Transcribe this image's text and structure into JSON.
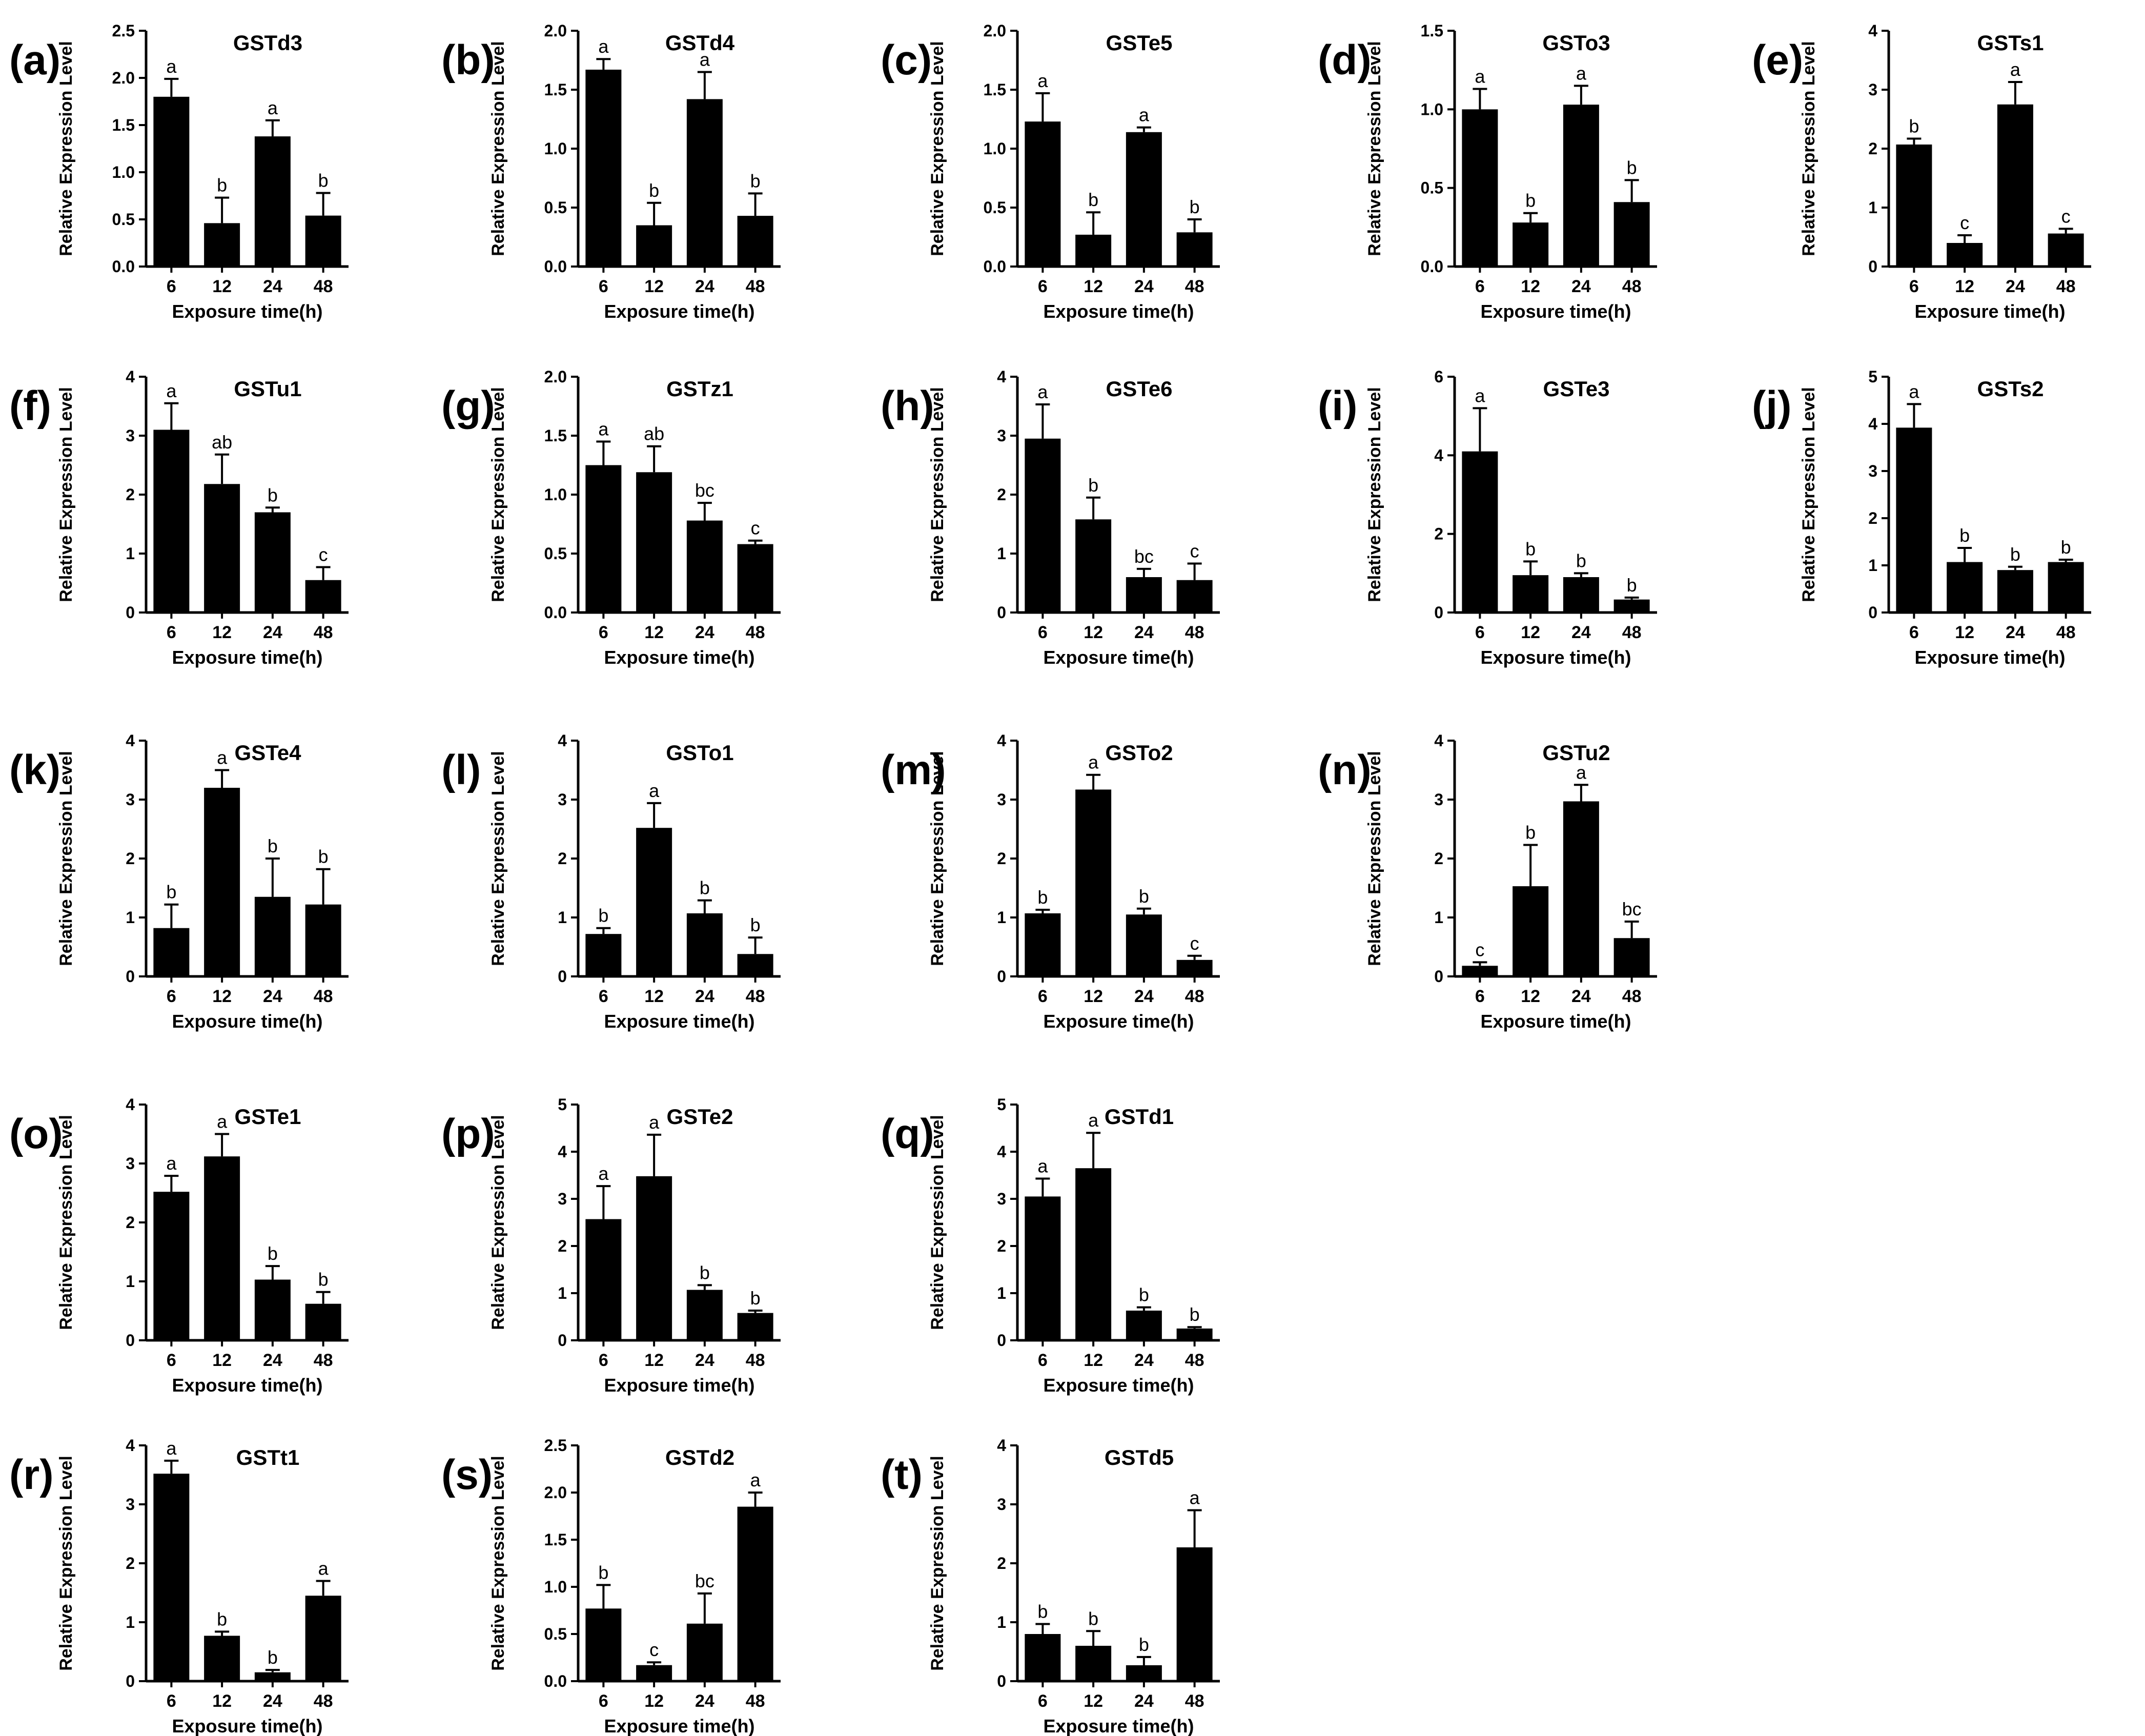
{
  "x_categories": [
    "6",
    "12",
    "24",
    "48"
  ],
  "x_axis_label": "Exposure time(h)",
  "y_axis_label": "Relative Expression Level",
  "chart_data": [
    {
      "panel": "(a)",
      "type": "bar",
      "title": "GSTd3",
      "ylim": [
        0,
        2.5
      ],
      "yticks": [
        "0.0",
        "0.5",
        "1.0",
        "1.5",
        "2.0",
        "2.5"
      ],
      "categories": [
        "6",
        "12",
        "24",
        "48"
      ],
      "values": [
        1.8,
        0.46,
        1.38,
        0.54
      ],
      "errors": [
        0.19,
        0.27,
        0.17,
        0.24
      ],
      "letters": [
        "a",
        "b",
        "a",
        "b"
      ],
      "xlabel": "Exposure time(h)",
      "ylabel": "Relative Expression Level"
    },
    {
      "panel": "(b)",
      "type": "bar",
      "title": "GSTd4",
      "ylim": [
        0,
        2.0
      ],
      "yticks": [
        "0.0",
        "0.5",
        "1.0",
        "1.5",
        "2.0"
      ],
      "categories": [
        "6",
        "12",
        "24",
        "48"
      ],
      "values": [
        1.67,
        0.35,
        1.42,
        0.43
      ],
      "errors": [
        0.09,
        0.19,
        0.23,
        0.19
      ],
      "letters": [
        "a",
        "b",
        "a",
        "b"
      ],
      "xlabel": "Exposure time(h)",
      "ylabel": "Relative Expression Level"
    },
    {
      "panel": "(c)",
      "type": "bar",
      "title": "GSTe5",
      "ylim": [
        0,
        2.0
      ],
      "yticks": [
        "0.0",
        "0.5",
        "1.0",
        "1.5",
        "2.0"
      ],
      "categories": [
        "6",
        "12",
        "24",
        "48"
      ],
      "values": [
        1.23,
        0.27,
        1.14,
        0.29
      ],
      "errors": [
        0.24,
        0.19,
        0.04,
        0.11
      ],
      "letters": [
        "a",
        "b",
        "a",
        "b"
      ],
      "xlabel": "Exposure time(h)",
      "ylabel": "Relative Expression Level"
    },
    {
      "panel": "(d)",
      "type": "bar",
      "title": "GSTo3",
      "ylim": [
        0,
        1.5
      ],
      "yticks": [
        "0.0",
        "0.5",
        "1.0",
        "1.5"
      ],
      "categories": [
        "6",
        "12",
        "24",
        "48"
      ],
      "values": [
        1.0,
        0.28,
        1.03,
        0.41
      ],
      "errors": [
        0.13,
        0.06,
        0.12,
        0.14
      ],
      "letters": [
        "a",
        "b",
        "a",
        "b"
      ],
      "xlabel": "Exposure time(h)",
      "ylabel": "Relative Expression Level"
    },
    {
      "panel": "(e)",
      "type": "bar",
      "title": "GSTs1",
      "ylim": [
        0,
        4
      ],
      "yticks": [
        "0",
        "1",
        "2",
        "3",
        "4"
      ],
      "categories": [
        "6",
        "12",
        "24",
        "48"
      ],
      "values": [
        2.07,
        0.4,
        2.75,
        0.56
      ],
      "errors": [
        0.1,
        0.13,
        0.38,
        0.08
      ],
      "letters": [
        "b",
        "c",
        "a",
        "c"
      ],
      "xlabel": "Exposure time(h)",
      "ylabel": "Relative Expression Level"
    },
    {
      "panel": "(f)",
      "type": "bar",
      "title": "GSTu1",
      "ylim": [
        0,
        4
      ],
      "yticks": [
        "0",
        "1",
        "2",
        "3",
        "4"
      ],
      "categories": [
        "6",
        "12",
        "24",
        "48"
      ],
      "values": [
        3.1,
        2.18,
        1.7,
        0.55
      ],
      "errors": [
        0.45,
        0.5,
        0.08,
        0.22
      ],
      "letters": [
        "a",
        "ab",
        "b",
        "c"
      ],
      "xlabel": "Exposure time(h)",
      "ylabel": "Relative Expression Level"
    },
    {
      "panel": "(g)",
      "type": "bar",
      "title": "GSTz1",
      "ylim": [
        0,
        2.0
      ],
      "yticks": [
        "0.0",
        "0.5",
        "1.0",
        "1.5",
        "2.0"
      ],
      "categories": [
        "6",
        "12",
        "24",
        "48"
      ],
      "values": [
        1.25,
        1.19,
        0.78,
        0.58
      ],
      "errors": [
        0.2,
        0.22,
        0.15,
        0.03
      ],
      "letters": [
        "a",
        "ab",
        "bc",
        "c"
      ],
      "xlabel": "Exposure time(h)",
      "ylabel": "Relative Expression Level"
    },
    {
      "panel": "(h)",
      "type": "bar",
      "title": "GSTe6",
      "ylim": [
        0,
        4
      ],
      "yticks": [
        "0",
        "1",
        "2",
        "3",
        "4"
      ],
      "categories": [
        "6",
        "12",
        "24",
        "48"
      ],
      "values": [
        2.95,
        1.58,
        0.6,
        0.55
      ],
      "errors": [
        0.58,
        0.37,
        0.14,
        0.28
      ],
      "letters": [
        "a",
        "b",
        "bc",
        "c"
      ],
      "xlabel": "Exposure time(h)",
      "ylabel": "Relative Expression Level"
    },
    {
      "panel": "(i)",
      "type": "bar",
      "title": "GSTe3",
      "ylim": [
        0,
        6
      ],
      "yticks": [
        "0",
        "2",
        "4",
        "6"
      ],
      "categories": [
        "6",
        "12",
        "24",
        "48"
      ],
      "values": [
        4.1,
        0.95,
        0.9,
        0.33
      ],
      "errors": [
        1.1,
        0.35,
        0.1,
        0.05
      ],
      "letters": [
        "a",
        "b",
        "b",
        "b"
      ],
      "xlabel": "Exposure time(h)",
      "ylabel": "Relative Expression Level"
    },
    {
      "panel": "(j)",
      "type": "bar",
      "title": "GSTs2",
      "ylim": [
        0,
        5
      ],
      "yticks": [
        "0",
        "1",
        "2",
        "3",
        "4",
        "5"
      ],
      "categories": [
        "6",
        "12",
        "24",
        "48"
      ],
      "values": [
        3.92,
        1.07,
        0.9,
        1.07
      ],
      "errors": [
        0.5,
        0.3,
        0.07,
        0.05
      ],
      "letters": [
        "a",
        "b",
        "b",
        "b"
      ],
      "xlabel": "Exposure time(h)",
      "ylabel": "Relative Expression Level"
    },
    {
      "panel": "(k)",
      "type": "bar",
      "title": "GSTe4",
      "ylim": [
        0,
        4
      ],
      "yticks": [
        "0",
        "1",
        "2",
        "3",
        "4"
      ],
      "categories": [
        "6",
        "12",
        "24",
        "48"
      ],
      "values": [
        0.82,
        3.2,
        1.35,
        1.22
      ],
      "errors": [
        0.4,
        0.3,
        0.65,
        0.6
      ],
      "letters": [
        "b",
        "a",
        "b",
        "b"
      ],
      "xlabel": "Exposure time(h)",
      "ylabel": "Relative Expression Level"
    },
    {
      "panel": "(l)",
      "type": "bar",
      "title": "GSTo1",
      "ylim": [
        0,
        4
      ],
      "yticks": [
        "0",
        "1",
        "2",
        "3",
        "4"
      ],
      "categories": [
        "6",
        "12",
        "24",
        "48"
      ],
      "values": [
        0.72,
        2.52,
        1.07,
        0.38
      ],
      "errors": [
        0.1,
        0.42,
        0.22,
        0.28
      ],
      "letters": [
        "b",
        "a",
        "b",
        "b"
      ],
      "xlabel": "Exposure time(h)",
      "ylabel": "Relative Expression Level"
    },
    {
      "panel": "(m)",
      "type": "bar",
      "title": "GSTo2",
      "ylim": [
        0,
        4
      ],
      "yticks": [
        "0",
        "1",
        "2",
        "3",
        "4"
      ],
      "categories": [
        "6",
        "12",
        "24",
        "48"
      ],
      "values": [
        1.07,
        3.17,
        1.05,
        0.28
      ],
      "errors": [
        0.06,
        0.25,
        0.1,
        0.07
      ],
      "letters": [
        "b",
        "a",
        "b",
        "c"
      ],
      "xlabel": "Exposure time(h)",
      "ylabel": "Relative Expression Level"
    },
    {
      "panel": "(n)",
      "type": "bar",
      "title": "GSTu2",
      "ylim": [
        0,
        4
      ],
      "yticks": [
        "0",
        "1",
        "2",
        "3",
        "4"
      ],
      "categories": [
        "6",
        "12",
        "24",
        "48"
      ],
      "values": [
        0.18,
        1.53,
        2.97,
        0.65
      ],
      "errors": [
        0.06,
        0.7,
        0.28,
        0.28
      ],
      "letters": [
        "c",
        "b",
        "a",
        "bc"
      ],
      "xlabel": "Exposure time(h)",
      "ylabel": "Relative Expression Level"
    },
    {
      "panel": "(o)",
      "type": "bar",
      "title": "GSTe1",
      "ylim": [
        0,
        4
      ],
      "yticks": [
        "0",
        "1",
        "2",
        "3",
        "4"
      ],
      "categories": [
        "6",
        "12",
        "24",
        "48"
      ],
      "values": [
        2.52,
        3.12,
        1.03,
        0.62
      ],
      "errors": [
        0.27,
        0.38,
        0.23,
        0.2
      ],
      "letters": [
        "a",
        "a",
        "b",
        "b"
      ],
      "xlabel": "Exposure time(h)",
      "ylabel": "Relative Expression Level"
    },
    {
      "panel": "(p)",
      "type": "bar",
      "title": "GSTe2",
      "ylim": [
        0,
        5
      ],
      "yticks": [
        "0",
        "1",
        "2",
        "3",
        "4",
        "5"
      ],
      "categories": [
        "6",
        "12",
        "24",
        "48"
      ],
      "values": [
        2.57,
        3.48,
        1.07,
        0.58
      ],
      "errors": [
        0.7,
        0.88,
        0.1,
        0.05
      ],
      "letters": [
        "a",
        "a",
        "b",
        "b"
      ],
      "xlabel": "Exposure time(h)",
      "ylabel": "Relative Expression Level"
    },
    {
      "panel": "(q)",
      "type": "bar",
      "title": "GSTd1",
      "ylim": [
        0,
        5
      ],
      "yticks": [
        "0",
        "1",
        "2",
        "3",
        "4",
        "5"
      ],
      "categories": [
        "6",
        "12",
        "24",
        "48"
      ],
      "values": [
        3.05,
        3.65,
        0.63,
        0.25
      ],
      "errors": [
        0.38,
        0.75,
        0.07,
        0.03
      ],
      "letters": [
        "a",
        "a",
        "b",
        "b"
      ],
      "xlabel": "Exposure time(h)",
      "ylabel": "Relative Expression Level"
    },
    {
      "panel": "(r)",
      "type": "bar",
      "title": "GSTt1",
      "ylim": [
        0,
        4
      ],
      "yticks": [
        "0",
        "1",
        "2",
        "3",
        "4"
      ],
      "categories": [
        "6",
        "12",
        "24",
        "48"
      ],
      "values": [
        3.52,
        0.77,
        0.15,
        1.45
      ],
      "errors": [
        0.22,
        0.07,
        0.04,
        0.25
      ],
      "letters": [
        "a",
        "b",
        "b",
        "a"
      ],
      "xlabel": "Exposure time(h)",
      "ylabel": "Relative Expression Level"
    },
    {
      "panel": "(s)",
      "type": "bar",
      "title": "GSTd2",
      "ylim": [
        0,
        2.5
      ],
      "yticks": [
        "0.0",
        "0.5",
        "1.0",
        "1.5",
        "2.0",
        "2.5"
      ],
      "categories": [
        "6",
        "12",
        "24",
        "48"
      ],
      "values": [
        0.77,
        0.17,
        0.61,
        1.85
      ],
      "errors": [
        0.25,
        0.03,
        0.32,
        0.15
      ],
      "letters": [
        "b",
        "c",
        "bc",
        "a"
      ],
      "xlabel": "Exposure time(h)",
      "ylabel": "Relative Expression Level"
    },
    {
      "panel": "(t)",
      "type": "bar",
      "title": "GSTd5",
      "ylim": [
        0,
        4
      ],
      "yticks": [
        "0",
        "1",
        "2",
        "3",
        "4"
      ],
      "categories": [
        "6",
        "12",
        "24",
        "48"
      ],
      "values": [
        0.8,
        0.6,
        0.27,
        2.27
      ],
      "errors": [
        0.17,
        0.25,
        0.14,
        0.63
      ],
      "letters": [
        "b",
        "b",
        "b",
        "a"
      ],
      "xlabel": "Exposure time(h)",
      "ylabel": "Relative Expression Level"
    }
  ]
}
